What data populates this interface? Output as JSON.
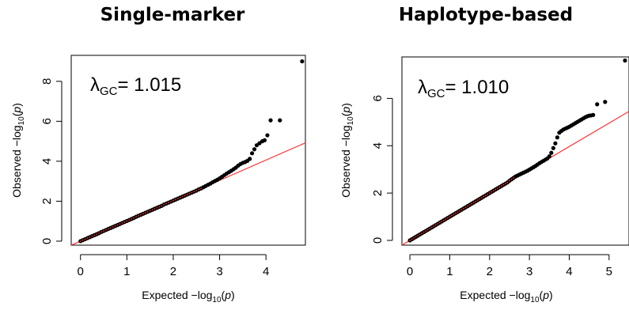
{
  "panels": [
    {
      "title": "Single-marker",
      "lambda_symbol": "λ",
      "lambda_sub": "GC",
      "lambda_value": "= 1.015"
    },
    {
      "title": "Haplotype-based",
      "lambda_symbol": "λ",
      "lambda_sub": "GC",
      "lambda_value": "= 1.010"
    }
  ],
  "chart_data": [
    {
      "type": "scatter",
      "title": "Single-marker",
      "xlabel": "Expected  −log10(p)",
      "ylabel": "Observed  −log10(p)",
      "xlim": [
        -0.2,
        4.85
      ],
      "ylim": [
        -0.2,
        9.3
      ],
      "xticks": [
        0,
        1,
        2,
        3,
        4
      ],
      "yticks": [
        0,
        2,
        4,
        6,
        8
      ],
      "annotation": "λGC= 1.015",
      "reference_line": {
        "from": [
          0,
          0
        ],
        "to": [
          4.85,
          4.92
        ],
        "color": "#ff3030"
      },
      "points_color": "#000000",
      "series": [
        {
          "points": [
            [
              0.0,
              0.0
            ],
            [
              0.05,
              0.05
            ],
            [
              0.1,
              0.1
            ],
            [
              0.15,
              0.15
            ],
            [
              0.2,
              0.2
            ],
            [
              0.25,
              0.25
            ],
            [
              0.3,
              0.3
            ],
            [
              0.35,
              0.35
            ],
            [
              0.4,
              0.4
            ],
            [
              0.45,
              0.46
            ],
            [
              0.5,
              0.51
            ],
            [
              0.55,
              0.56
            ],
            [
              0.6,
              0.61
            ],
            [
              0.65,
              0.66
            ],
            [
              0.7,
              0.71
            ],
            [
              0.75,
              0.76
            ],
            [
              0.8,
              0.81
            ],
            [
              0.85,
              0.86
            ],
            [
              0.9,
              0.91
            ],
            [
              0.95,
              0.96
            ],
            [
              1.0,
              1.01
            ],
            [
              1.05,
              1.06
            ],
            [
              1.1,
              1.11
            ],
            [
              1.15,
              1.16
            ],
            [
              1.2,
              1.22
            ],
            [
              1.25,
              1.27
            ],
            [
              1.3,
              1.32
            ],
            [
              1.35,
              1.37
            ],
            [
              1.4,
              1.42
            ],
            [
              1.45,
              1.47
            ],
            [
              1.5,
              1.52
            ],
            [
              1.55,
              1.57
            ],
            [
              1.6,
              1.62
            ],
            [
              1.65,
              1.67
            ],
            [
              1.7,
              1.72
            ],
            [
              1.75,
              1.77
            ],
            [
              1.8,
              1.83
            ],
            [
              1.85,
              1.88
            ],
            [
              1.9,
              1.93
            ],
            [
              1.95,
              1.98
            ],
            [
              2.0,
              2.03
            ],
            [
              2.05,
              2.08
            ],
            [
              2.1,
              2.13
            ],
            [
              2.15,
              2.18
            ],
            [
              2.2,
              2.23
            ],
            [
              2.25,
              2.28
            ],
            [
              2.3,
              2.33
            ],
            [
              2.35,
              2.38
            ],
            [
              2.4,
              2.43
            ],
            [
              2.45,
              2.48
            ],
            [
              2.5,
              2.53
            ],
            [
              2.55,
              2.59
            ],
            [
              2.6,
              2.64
            ],
            [
              2.65,
              2.7
            ],
            [
              2.7,
              2.76
            ],
            [
              2.75,
              2.82
            ],
            [
              2.8,
              2.88
            ],
            [
              2.85,
              2.95
            ],
            [
              2.9,
              3.01
            ],
            [
              2.95,
              3.07
            ],
            [
              3.0,
              3.14
            ],
            [
              3.05,
              3.22
            ],
            [
              3.1,
              3.3
            ],
            [
              3.15,
              3.38
            ],
            [
              3.2,
              3.45
            ],
            [
              3.25,
              3.52
            ],
            [
              3.3,
              3.6
            ],
            [
              3.35,
              3.68
            ],
            [
              3.4,
              3.78
            ],
            [
              3.45,
              3.86
            ],
            [
              3.5,
              3.92
            ],
            [
              3.55,
              3.96
            ],
            [
              3.6,
              4.02
            ],
            [
              3.65,
              4.12
            ],
            [
              3.7,
              4.4
            ],
            [
              3.75,
              4.6
            ],
            [
              3.8,
              4.8
            ],
            [
              3.86,
              4.9
            ],
            [
              3.92,
              5.0
            ],
            [
              3.97,
              5.05
            ],
            [
              4.03,
              5.3
            ],
            [
              4.1,
              6.05
            ],
            [
              4.3,
              6.05
            ],
            [
              4.78,
              9.0
            ]
          ]
        }
      ]
    },
    {
      "type": "scatter",
      "title": "Haplotype-based",
      "xlabel": "Expected  −log10(p)",
      "ylabel": "Observed  −log10(p)",
      "xlim": [
        -0.2,
        5.5
      ],
      "ylim": [
        -0.2,
        7.75
      ],
      "xticks": [
        0,
        1,
        2,
        3,
        4,
        5
      ],
      "yticks": [
        0,
        2,
        4,
        6
      ],
      "annotation": "λGC= 1.010",
      "reference_line": {
        "from": [
          0,
          0
        ],
        "to": [
          5.5,
          5.45
        ],
        "color": "#ff3030"
      },
      "points_color": "#000000",
      "series": [
        {
          "points": [
            [
              0.0,
              0.0
            ],
            [
              0.05,
              0.05
            ],
            [
              0.1,
              0.1
            ],
            [
              0.15,
              0.15
            ],
            [
              0.2,
              0.2
            ],
            [
              0.25,
              0.25
            ],
            [
              0.3,
              0.3
            ],
            [
              0.35,
              0.35
            ],
            [
              0.4,
              0.4
            ],
            [
              0.45,
              0.45
            ],
            [
              0.5,
              0.5
            ],
            [
              0.55,
              0.55
            ],
            [
              0.6,
              0.6
            ],
            [
              0.65,
              0.65
            ],
            [
              0.7,
              0.7
            ],
            [
              0.75,
              0.75
            ],
            [
              0.8,
              0.8
            ],
            [
              0.85,
              0.85
            ],
            [
              0.9,
              0.9
            ],
            [
              0.95,
              0.95
            ],
            [
              1.0,
              1.0
            ],
            [
              1.05,
              1.05
            ],
            [
              1.1,
              1.1
            ],
            [
              1.15,
              1.15
            ],
            [
              1.2,
              1.2
            ],
            [
              1.25,
              1.25
            ],
            [
              1.3,
              1.3
            ],
            [
              1.35,
              1.35
            ],
            [
              1.4,
              1.4
            ],
            [
              1.45,
              1.45
            ],
            [
              1.5,
              1.5
            ],
            [
              1.55,
              1.55
            ],
            [
              1.6,
              1.6
            ],
            [
              1.65,
              1.65
            ],
            [
              1.7,
              1.7
            ],
            [
              1.75,
              1.75
            ],
            [
              1.8,
              1.8
            ],
            [
              1.85,
              1.85
            ],
            [
              1.9,
              1.9
            ],
            [
              1.95,
              1.95
            ],
            [
              2.0,
              2.0
            ],
            [
              2.05,
              2.05
            ],
            [
              2.1,
              2.1
            ],
            [
              2.15,
              2.15
            ],
            [
              2.2,
              2.2
            ],
            [
              2.25,
              2.25
            ],
            [
              2.3,
              2.3
            ],
            [
              2.35,
              2.35
            ],
            [
              2.4,
              2.4
            ],
            [
              2.45,
              2.45
            ],
            [
              2.5,
              2.52
            ],
            [
              2.55,
              2.58
            ],
            [
              2.6,
              2.64
            ],
            [
              2.65,
              2.7
            ],
            [
              2.7,
              2.74
            ],
            [
              2.75,
              2.78
            ],
            [
              2.8,
              2.82
            ],
            [
              2.85,
              2.86
            ],
            [
              2.9,
              2.9
            ],
            [
              2.95,
              2.94
            ],
            [
              3.0,
              2.99
            ],
            [
              3.05,
              3.04
            ],
            [
              3.1,
              3.09
            ],
            [
              3.15,
              3.14
            ],
            [
              3.2,
              3.2
            ],
            [
              3.25,
              3.26
            ],
            [
              3.3,
              3.31
            ],
            [
              3.35,
              3.36
            ],
            [
              3.4,
              3.41
            ],
            [
              3.45,
              3.46
            ],
            [
              3.5,
              3.55
            ],
            [
              3.55,
              3.7
            ],
            [
              3.6,
              3.9
            ],
            [
              3.65,
              4.1
            ],
            [
              3.7,
              4.35
            ],
            [
              3.75,
              4.55
            ],
            [
              3.8,
              4.62
            ],
            [
              3.85,
              4.68
            ],
            [
              3.9,
              4.72
            ],
            [
              3.95,
              4.76
            ],
            [
              4.0,
              4.8
            ],
            [
              4.05,
              4.85
            ],
            [
              4.1,
              4.9
            ],
            [
              4.15,
              4.95
            ],
            [
              4.2,
              5.0
            ],
            [
              4.25,
              5.05
            ],
            [
              4.3,
              5.1
            ],
            [
              4.35,
              5.15
            ],
            [
              4.4,
              5.2
            ],
            [
              4.45,
              5.24
            ],
            [
              4.5,
              5.27
            ],
            [
              4.55,
              5.28
            ],
            [
              4.6,
              5.3
            ],
            [
              4.7,
              5.75
            ],
            [
              4.9,
              5.85
            ],
            [
              5.4,
              7.6
            ]
          ]
        }
      ]
    }
  ]
}
